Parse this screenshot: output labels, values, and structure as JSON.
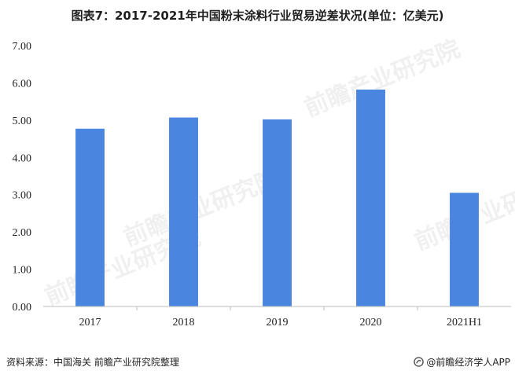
{
  "title": "图表7：2017-2021年中国粉末涂料行业贸易逆差状况(单位：亿美元)",
  "chart_data": {
    "type": "bar",
    "title": "图表7：2017-2021年中国粉末涂料行业贸易逆差状况(单位：亿美元)",
    "categories": [
      "2017",
      "2018",
      "2019",
      "2020",
      "2021H1"
    ],
    "values": [
      4.77,
      5.07,
      5.02,
      5.82,
      3.05
    ],
    "ylim": [
      0,
      7
    ],
    "yticks": [
      "0.00",
      "1.00",
      "2.00",
      "3.00",
      "4.00",
      "5.00",
      "6.00",
      "7.00"
    ],
    "xlabel": "",
    "ylabel": "",
    "bar_color": "#4a86e0",
    "grid": false
  },
  "footer": {
    "source": "资料来源：中国海关 前瞻产业研究院整理",
    "brand": "@前瞻经济学人APP"
  },
  "watermark": {
    "text": "前瞻产业研究院"
  }
}
